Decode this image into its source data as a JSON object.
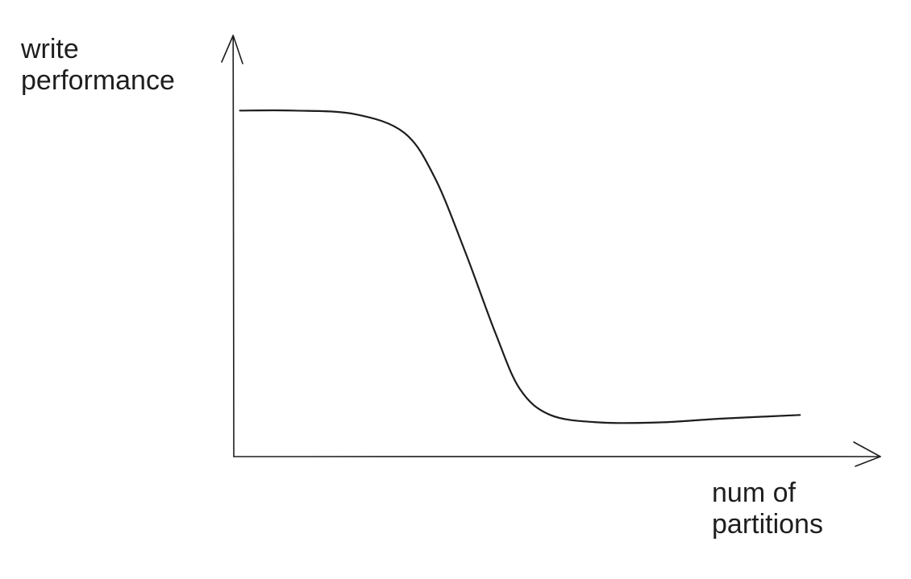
{
  "chart_data": {
    "type": "line",
    "ylabel_lines": [
      "write",
      "performance"
    ],
    "xlabel_lines": [
      "num of",
      "partitions"
    ],
    "x_ticks": [],
    "y_ticks": [],
    "grid": false,
    "legend": "none",
    "line_color": "#1e1e1e",
    "xlim": [
      0,
      100
    ],
    "ylim": [
      0,
      100
    ],
    "series": [
      {
        "points": [
          [
            1,
            93
          ],
          [
            10,
            93
          ],
          [
            20,
            92
          ],
          [
            28,
            87
          ],
          [
            33,
            75
          ],
          [
            38,
            55
          ],
          [
            43,
            33
          ],
          [
            47,
            18
          ],
          [
            52,
            11
          ],
          [
            60,
            9
          ],
          [
            70,
            9
          ],
          [
            80,
            10
          ],
          [
            93,
            11
          ]
        ]
      }
    ]
  }
}
